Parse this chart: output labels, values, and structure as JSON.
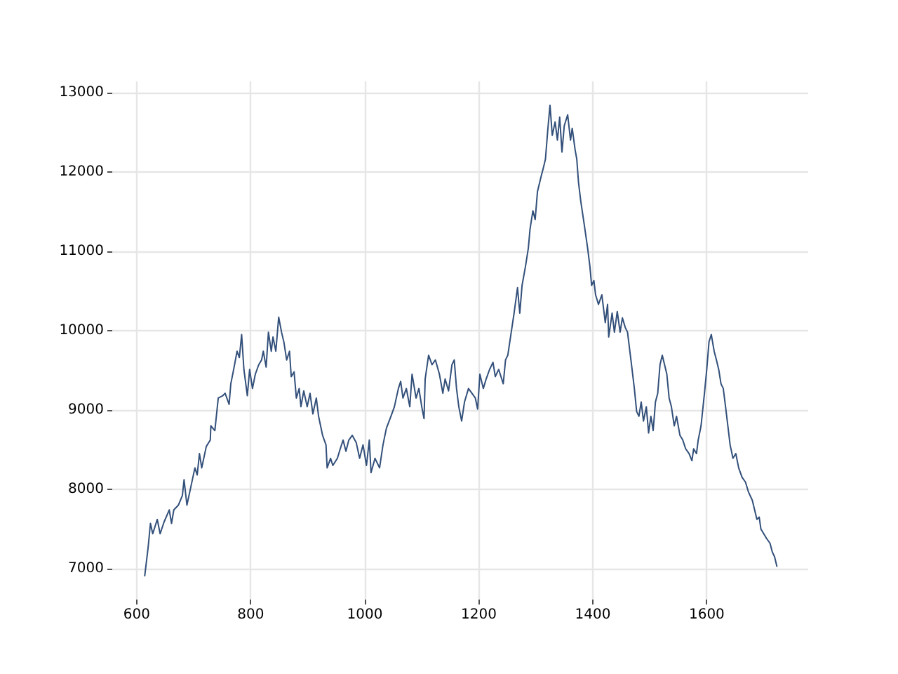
{
  "chart_data": {
    "type": "line",
    "color": "#33507a",
    "grid": true,
    "marker": "none",
    "xlim": [
      557,
      1778
    ],
    "ylim": [
      6610,
      13140
    ],
    "xticks": [
      600,
      800,
      1000,
      1200,
      1400,
      1600
    ],
    "yticks": [
      7000,
      8000,
      9000,
      10000,
      11000,
      12000,
      13000
    ],
    "x": [
      614,
      620,
      624,
      628,
      636,
      641,
      648,
      657,
      661,
      665,
      673,
      680,
      683,
      688,
      694,
      702,
      706,
      710,
      714,
      722,
      729,
      730,
      737,
      743,
      751,
      755,
      762,
      765,
      770,
      776,
      780,
      784,
      788,
      794,
      798,
      803,
      808,
      814,
      819,
      822,
      827,
      831,
      836,
      839,
      844,
      849,
      854,
      858,
      863,
      868,
      871,
      876,
      880,
      885,
      888,
      893,
      899,
      904,
      909,
      915,
      919,
      926,
      932,
      934,
      940,
      944,
      952,
      957,
      962,
      967,
      972,
      978,
      985,
      991,
      997,
      1003,
      1008,
      1011,
      1018,
      1026,
      1032,
      1038,
      1046,
      1052,
      1059,
      1063,
      1067,
      1073,
      1079,
      1083,
      1090,
      1095,
      1100,
      1104,
      1106,
      1112,
      1118,
      1124,
      1131,
      1137,
      1141,
      1147,
      1153,
      1157,
      1161,
      1165,
      1170,
      1175,
      1182,
      1188,
      1194,
      1198,
      1202,
      1208,
      1213,
      1219,
      1225,
      1229,
      1235,
      1243,
      1247,
      1251,
      1257,
      1262,
      1268,
      1272,
      1276,
      1282,
      1287,
      1290,
      1295,
      1299,
      1303,
      1309,
      1314,
      1317,
      1321,
      1325,
      1329,
      1334,
      1338,
      1342,
      1346,
      1350,
      1356,
      1361,
      1364,
      1369,
      1372,
      1375,
      1379,
      1385,
      1391,
      1395,
      1398,
      1402,
      1405,
      1410,
      1416,
      1422,
      1426,
      1428,
      1434,
      1438,
      1443,
      1448,
      1452,
      1457,
      1461,
      1467,
      1473,
      1477,
      1481,
      1485,
      1489,
      1494,
      1498,
      1502,
      1506,
      1510,
      1514,
      1518,
      1522,
      1526,
      1530,
      1534,
      1538,
      1543,
      1547,
      1553,
      1558,
      1563,
      1569,
      1574,
      1577,
      1582,
      1585,
      1590,
      1596,
      1600,
      1604,
      1608,
      1613,
      1617,
      1621,
      1625,
      1629,
      1633,
      1637,
      1641,
      1646,
      1651,
      1656,
      1662,
      1668,
      1673,
      1680,
      1684,
      1688,
      1692,
      1695,
      1700,
      1705,
      1711,
      1715,
      1719,
      1723
    ],
    "values": [
      6910,
      7270,
      7570,
      7440,
      7620,
      7440,
      7590,
      7740,
      7570,
      7740,
      7800,
      7920,
      8120,
      7800,
      8000,
      8270,
      8180,
      8450,
      8270,
      8540,
      8620,
      8800,
      8740,
      9150,
      9180,
      9210,
      9070,
      9330,
      9510,
      9740,
      9660,
      9950,
      9510,
      9180,
      9510,
      9270,
      9450,
      9570,
      9630,
      9740,
      9540,
      9980,
      9740,
      9920,
      9740,
      10170,
      9980,
      9860,
      9630,
      9740,
      9420,
      9480,
      9150,
      9270,
      9040,
      9240,
      9040,
      9210,
      8950,
      9150,
      8920,
      8680,
      8560,
      8270,
      8390,
      8300,
      8390,
      8510,
      8620,
      8480,
      8620,
      8680,
      8590,
      8390,
      8560,
      8300,
      8620,
      8210,
      8390,
      8270,
      8560,
      8770,
      8920,
      9040,
      9270,
      9360,
      9150,
      9270,
      9040,
      9450,
      9150,
      9270,
      9040,
      8890,
      9390,
      9690,
      9570,
      9630,
      9450,
      9210,
      9390,
      9240,
      9570,
      9630,
      9270,
      9040,
      8860,
      9100,
      9270,
      9210,
      9150,
      9010,
      9450,
      9270,
      9390,
      9510,
      9600,
      9420,
      9510,
      9330,
      9630,
      9690,
      9980,
      10220,
      10540,
      10220,
      10570,
      10810,
      11040,
      11280,
      11510,
      11400,
      11750,
      11930,
      12070,
      12160,
      12520,
      12840,
      12460,
      12630,
      12400,
      12690,
      12250,
      12580,
      12720,
      12400,
      12550,
      12280,
      12160,
      11870,
      11630,
      11340,
      11040,
      10810,
      10570,
      10630,
      10450,
      10330,
      10450,
      10100,
      10330,
      9920,
      10220,
      9980,
      10240,
      9980,
      10160,
      10040,
      9980,
      9630,
      9270,
      8980,
      8920,
      9100,
      8860,
      9040,
      8710,
      8920,
      8740,
      9100,
      9210,
      9570,
      9690,
      9570,
      9450,
      9150,
      9040,
      8800,
      8920,
      8680,
      8620,
      8510,
      8450,
      8360,
      8510,
      8450,
      8620,
      8800,
      9210,
      9510,
      9860,
      9950,
      9740,
      9630,
      9510,
      9330,
      9270,
      9040,
      8800,
      8560,
      8390,
      8450,
      8270,
      8150,
      8090,
      7970,
      7860,
      7740,
      7620,
      7650,
      7500,
      7440,
      7380,
      7320,
      7210,
      7150,
      7030
    ]
  }
}
